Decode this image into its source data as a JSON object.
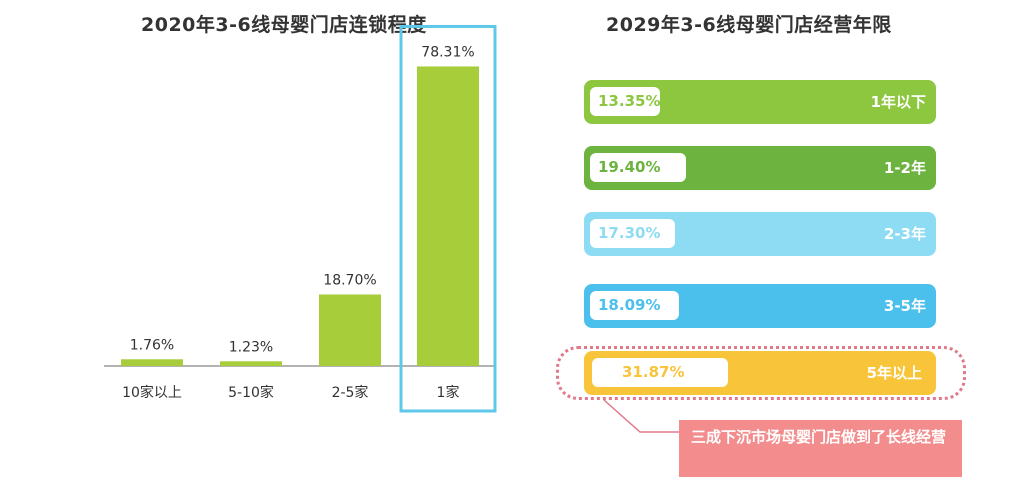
{
  "chart_data": [
    {
      "type": "bar",
      "title": "2020年3-6线母婴门店连锁程度",
      "categories": [
        "10家以上",
        "5-10家",
        "2-5家",
        "1家"
      ],
      "values": [
        1.76,
        1.23,
        18.7,
        78.31
      ],
      "value_labels": [
        "1.76%",
        "1.23%",
        "18.70%",
        "78.31%"
      ],
      "ylim": [
        0,
        80
      ],
      "highlighted_category": "1家",
      "bar_color": "#a8cd3a",
      "highlight_color": "#5ec8e8",
      "grid": false
    },
    {
      "type": "bar",
      "orientation": "horizontal",
      "title": "2029年3-6线母婴门店经营年限",
      "categories": [
        "1年以下",
        "1-2年",
        "2-3年",
        "3-5年",
        "5年以上"
      ],
      "values": [
        13.35,
        19.4,
        17.3,
        18.09,
        31.87
      ],
      "value_labels": [
        "13.35%",
        "19.40%",
        "17.30%",
        "18.09%",
        "31.87%"
      ],
      "colors": [
        "#8dc63f",
        "#6cb33f",
        "#8ddcf4",
        "#4cc0ec",
        "#f8c43a"
      ],
      "text_colors": [
        "#8dc63f",
        "#6cb33f",
        "#8ddcf4",
        "#4cc0ec",
        "#f8c43a"
      ],
      "highlighted_category": "5年以上",
      "grid": false
    }
  ],
  "callout": {
    "text": "三成下沉市场母婴门店做到了长线经营",
    "color": "#f38c8c"
  }
}
